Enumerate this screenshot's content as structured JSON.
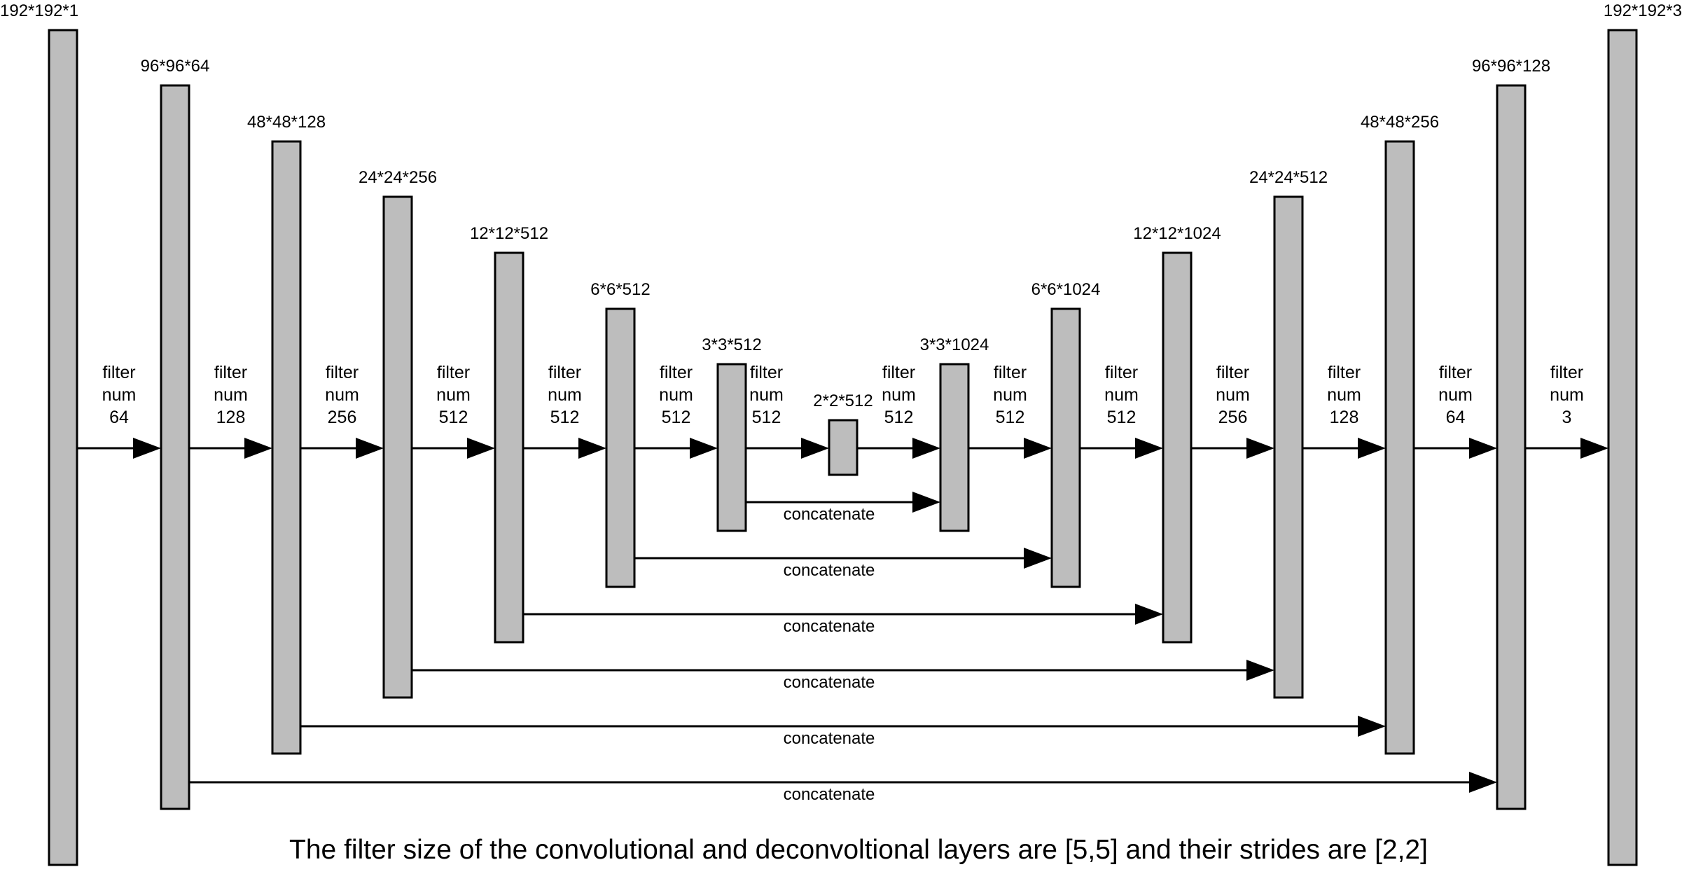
{
  "diagram": {
    "type": "encoder-decoder-network",
    "encoder_layers": [
      {
        "id": "input",
        "dims": "192*192*1"
      },
      {
        "id": "enc1",
        "dims": "96*96*64"
      },
      {
        "id": "enc2",
        "dims": "48*48*128"
      },
      {
        "id": "enc3",
        "dims": "24*24*256"
      },
      {
        "id": "enc4",
        "dims": "12*12*512"
      },
      {
        "id": "enc5",
        "dims": "6*6*512"
      },
      {
        "id": "enc6",
        "dims": "3*3*512"
      },
      {
        "id": "bottleneck",
        "dims": "2*2*512"
      }
    ],
    "decoder_layers": [
      {
        "id": "dec6",
        "dims": "3*3*1024"
      },
      {
        "id": "dec5",
        "dims": "6*6*1024"
      },
      {
        "id": "dec4",
        "dims": "12*12*1024"
      },
      {
        "id": "dec3",
        "dims": "24*24*512"
      },
      {
        "id": "dec2",
        "dims": "48*48*256"
      },
      {
        "id": "dec1",
        "dims": "96*96*128"
      },
      {
        "id": "output",
        "dims": "192*192*3"
      }
    ],
    "filter_connections": [
      {
        "from": "input",
        "to": "enc1",
        "word1": "filter",
        "word2": "num",
        "count": "64"
      },
      {
        "from": "enc1",
        "to": "enc2",
        "word1": "filter",
        "word2": "num",
        "count": "128"
      },
      {
        "from": "enc2",
        "to": "enc3",
        "word1": "filter",
        "word2": "num",
        "count": "256"
      },
      {
        "from": "enc3",
        "to": "enc4",
        "word1": "filter",
        "word2": "num",
        "count": "512"
      },
      {
        "from": "enc4",
        "to": "enc5",
        "word1": "filter",
        "word2": "num",
        "count": "512"
      },
      {
        "from": "enc5",
        "to": "enc6",
        "word1": "filter",
        "word2": "num",
        "count": "512"
      },
      {
        "from": "enc6",
        "to": "bottleneck",
        "word1": "filter",
        "word2": "num",
        "count": "512"
      },
      {
        "from": "bottleneck",
        "to": "dec6",
        "word1": "filter",
        "word2": "num",
        "count": "512"
      },
      {
        "from": "dec6",
        "to": "dec5",
        "word1": "filter",
        "word2": "num",
        "count": "512"
      },
      {
        "from": "dec5",
        "to": "dec4",
        "word1": "filter",
        "word2": "num",
        "count": "512"
      },
      {
        "from": "dec4",
        "to": "dec3",
        "word1": "filter",
        "word2": "num",
        "count": "256"
      },
      {
        "from": "dec3",
        "to": "dec2",
        "word1": "filter",
        "word2": "num",
        "count": "128"
      },
      {
        "from": "dec2",
        "to": "dec1",
        "word1": "filter",
        "word2": "num",
        "count": "64"
      },
      {
        "from": "dec1",
        "to": "output",
        "word1": "filter",
        "word2": "num",
        "count": "3"
      }
    ],
    "skip_connections": [
      {
        "from": "enc6",
        "to": "dec6",
        "label": "concatenate"
      },
      {
        "from": "enc5",
        "to": "dec5",
        "label": "concatenate"
      },
      {
        "from": "enc4",
        "to": "dec4",
        "label": "concatenate"
      },
      {
        "from": "enc3",
        "to": "dec3",
        "label": "concatenate"
      },
      {
        "from": "enc2",
        "to": "dec2",
        "label": "concatenate"
      },
      {
        "from": "enc1",
        "to": "dec1",
        "label": "concatenate"
      }
    ],
    "caption": "The filter size of the convolutional and deconvoltional layers are [5,5] and their strides are [2,2]"
  }
}
